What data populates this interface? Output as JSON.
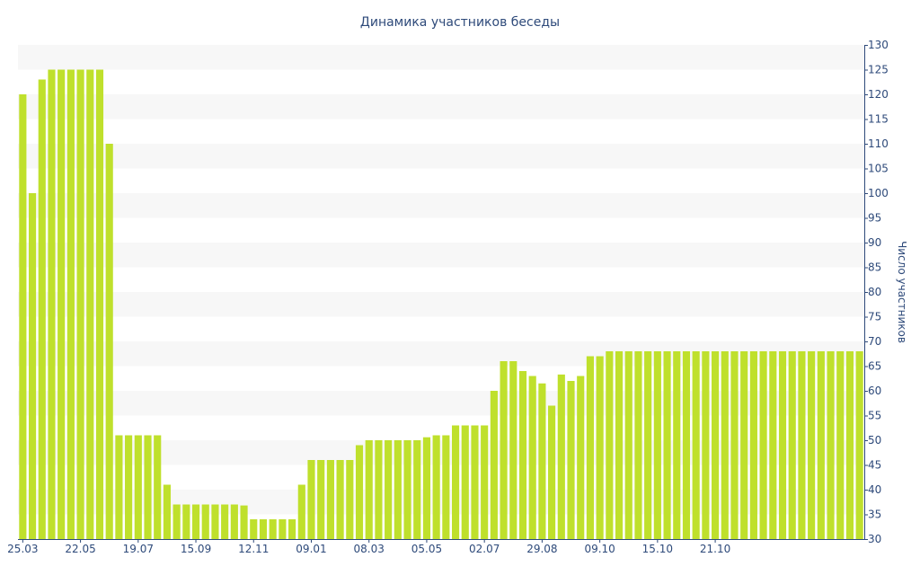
{
  "chart_data": {
    "type": "bar",
    "title": "Динамика участников беседы",
    "xlabel": "",
    "ylabel": "Число участников",
    "ylim": [
      30,
      130
    ],
    "y_axis_side": "right",
    "grid": "alternating horizontal bands",
    "bar_color": "#bfe02c",
    "band_color": "#f7f7f7",
    "text_color": "#2e4a7a",
    "y_ticks": [
      30,
      35,
      40,
      45,
      50,
      55,
      60,
      65,
      70,
      75,
      80,
      85,
      90,
      95,
      100,
      105,
      110,
      115,
      120,
      125,
      130
    ],
    "x_ticks": [
      {
        "label": "25.03",
        "index": 0
      },
      {
        "label": "22.05",
        "index": 6
      },
      {
        "label": "19.07",
        "index": 12
      },
      {
        "label": "15.09",
        "index": 18
      },
      {
        "label": "12.11",
        "index": 24
      },
      {
        "label": "09.01",
        "index": 30
      },
      {
        "label": "08.03",
        "index": 36
      },
      {
        "label": "05.05",
        "index": 42
      },
      {
        "label": "02.07",
        "index": 48
      },
      {
        "label": "29.08",
        "index": 54
      },
      {
        "label": "09.10",
        "index": 60
      },
      {
        "label": "15.10",
        "index": 66
      },
      {
        "label": "21.10",
        "index": 72
      }
    ],
    "values": [
      120,
      100,
      123,
      125,
      125,
      125,
      125,
      125,
      125,
      110,
      51,
      51,
      51,
      51,
      51,
      41,
      37,
      37,
      37,
      37,
      37,
      37,
      37,
      36.8,
      34,
      34,
      34,
      34,
      34,
      41,
      46,
      46,
      46,
      46,
      46,
      49,
      50,
      50,
      50,
      50,
      50,
      50,
      50.6,
      51,
      51,
      53,
      53,
      53,
      53,
      60,
      66,
      66,
      64,
      63,
      61.5,
      57,
      63.3,
      62,
      63,
      67,
      67,
      68,
      68,
      68,
      68,
      68,
      68,
      68,
      68,
      68,
      68,
      68,
      68,
      68,
      68,
      68,
      68,
      68,
      68,
      68,
      68,
      68,
      68,
      68,
      68,
      68,
      68,
      68
    ]
  }
}
